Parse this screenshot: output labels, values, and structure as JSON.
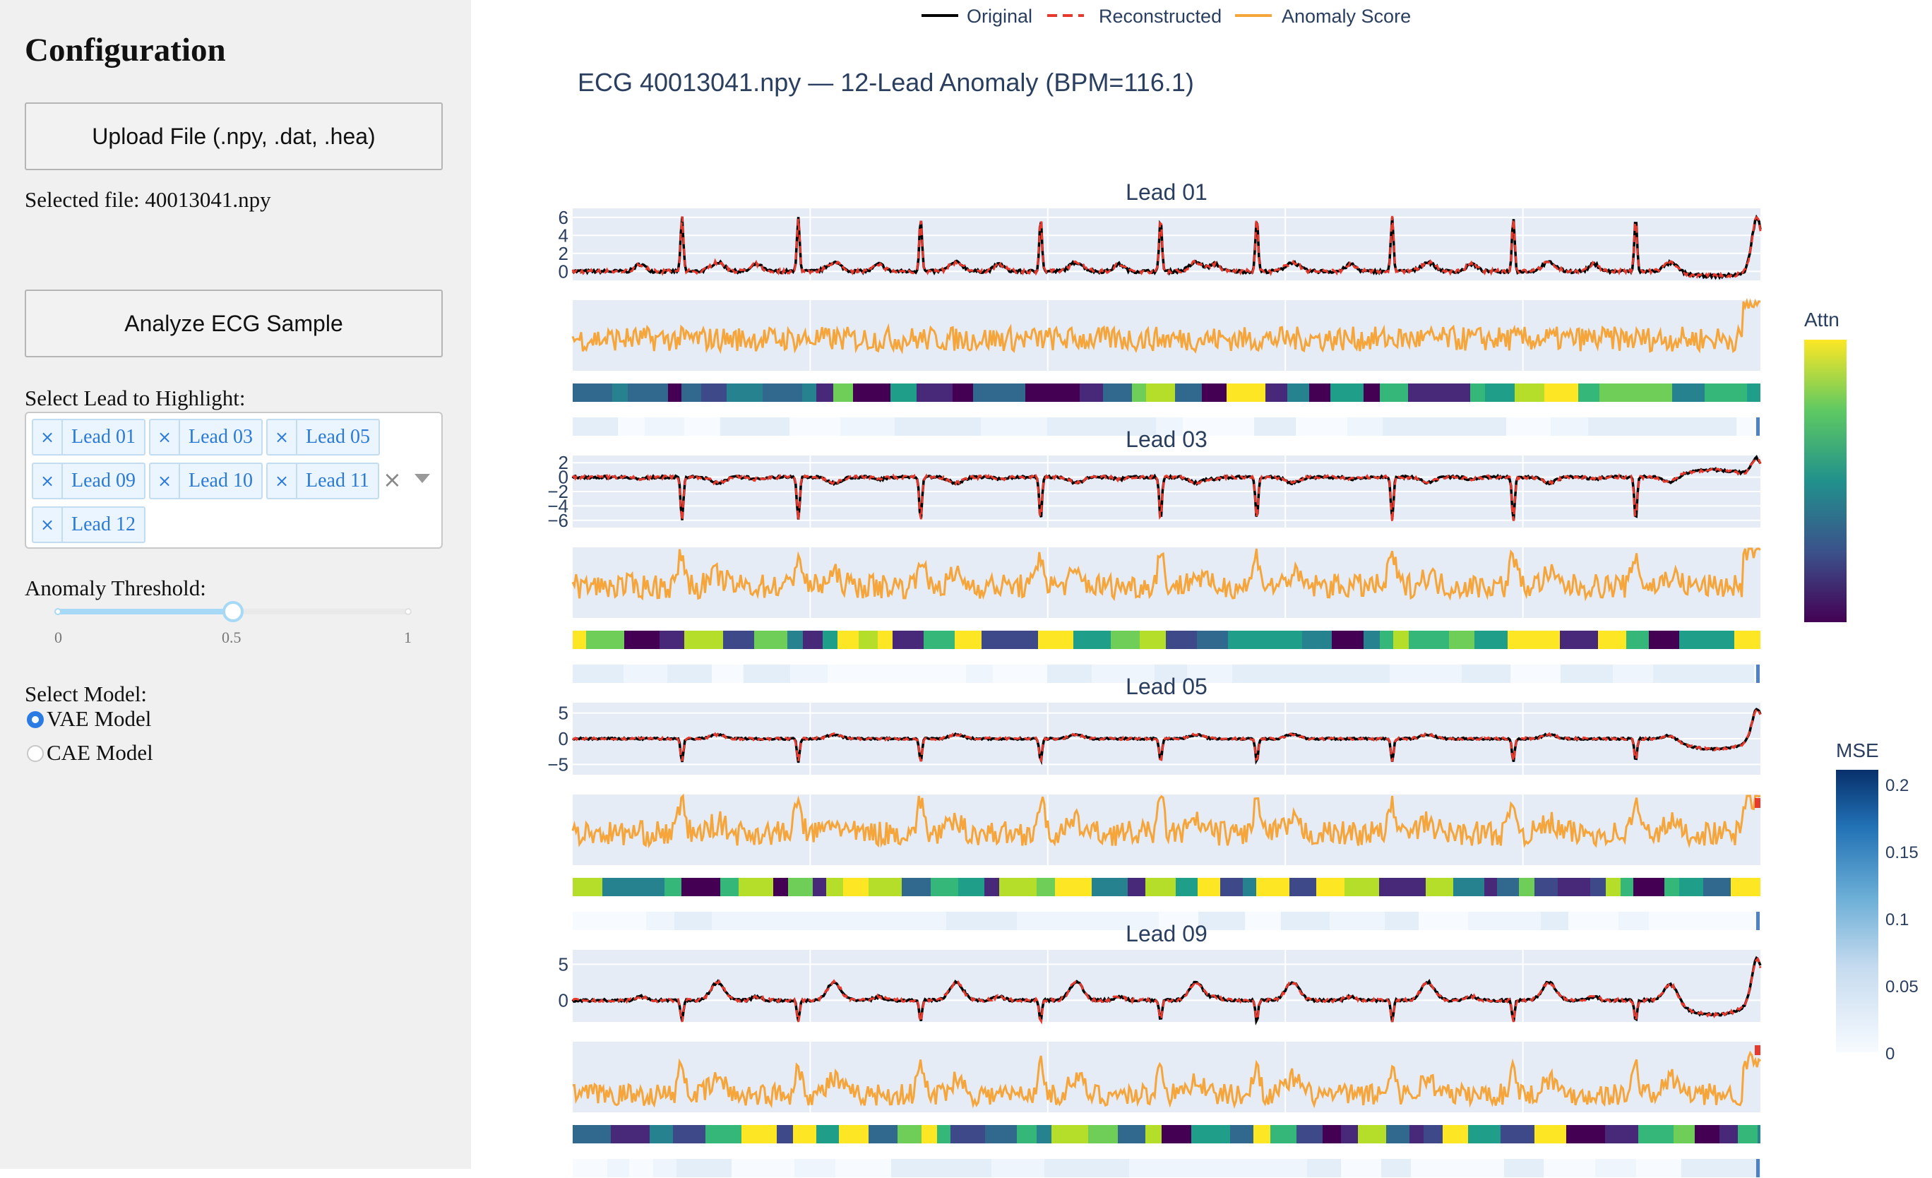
{
  "sidebar": {
    "title": "Configuration",
    "upload_button": "Upload File (.npy, .dat, .hea)",
    "selected_file": "Selected file: 40013041.npy",
    "analyze_button": "Analyze ECG Sample",
    "lead_select_label": "Select Lead to Highlight:",
    "selected_leads": [
      "Lead 01",
      "Lead 03",
      "Lead 05",
      "Lead 09",
      "Lead 10",
      "Lead 11",
      "Lead 12"
    ],
    "threshold_label": "Anomaly Threshold:",
    "threshold_value": 0.5,
    "threshold_ticks": [
      "0",
      "0.5",
      "1"
    ],
    "model_label": "Select Model:",
    "models": [
      {
        "label": "VAE Model",
        "selected": true
      },
      {
        "label": "CAE Model",
        "selected": false
      }
    ]
  },
  "chart_data": {
    "type": "line",
    "title": "ECG 40013041.npy — 12-Lead Anomaly (BPM=116.1)",
    "legend": [
      "Original",
      "Reconstructed",
      "Anomaly Score"
    ],
    "legend_position": "top",
    "series_colors": {
      "Original": "#000000",
      "Reconstructed": "#e8392d",
      "Anomaly Score": "#f5a53a"
    },
    "beat_positions": [
      0.092,
      0.19,
      0.293,
      0.394,
      0.495,
      0.576,
      0.69,
      0.792,
      0.895
    ],
    "panels": [
      {
        "title": "Lead 01",
        "yticks": [
          "6",
          "4",
          "2",
          "0"
        ],
        "ylim": [
          -1,
          7
        ],
        "qrs": "up"
      },
      {
        "title": "Lead 03",
        "yticks": [
          "2",
          "0",
          "−2",
          "−4",
          "−6"
        ],
        "ylim": [
          -7,
          3
        ],
        "qrs": "down"
      },
      {
        "title": "Lead 05",
        "yticks": [
          "5",
          "0",
          "−5"
        ],
        "ylim": [
          -7,
          7
        ],
        "qrs": "down-small"
      },
      {
        "title": "Lead 09",
        "yticks": [
          "5",
          "0"
        ],
        "ylim": [
          -3,
          7
        ],
        "qrs": "down-twave"
      }
    ],
    "colorbars": [
      {
        "title": "Attn",
        "colorscale": "viridis"
      },
      {
        "title": "MSE",
        "colorscale": "blues",
        "ticks": [
          "0.2",
          "0.15",
          "0.1",
          "0.05",
          "0"
        ],
        "range": [
          0,
          0.22
        ]
      }
    ]
  }
}
